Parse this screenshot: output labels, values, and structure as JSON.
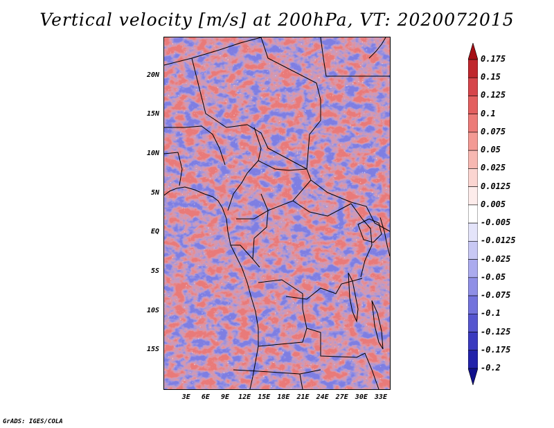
{
  "title": "Vertical velocity [m/s] at 200hPa, VT: 2020072015",
  "credit": "GrADS: IGES/COLA",
  "map": {
    "lon_range": [
      -0.5,
      34.5
    ],
    "lat_range": [
      -20,
      25
    ],
    "lat_ticks": [
      {
        "label": "20N",
        "lat": 20
      },
      {
        "label": "15N",
        "lat": 15
      },
      {
        "label": "10N",
        "lat": 10
      },
      {
        "label": "5N",
        "lat": 5
      },
      {
        "label": "EQ",
        "lat": 0
      },
      {
        "label": "5S",
        "lat": -5
      },
      {
        "label": "10S",
        "lat": -10
      },
      {
        "label": "15S",
        "lat": -15
      }
    ],
    "lon_ticks": [
      {
        "label": "3E",
        "lon": 3
      },
      {
        "label": "6E",
        "lon": 6
      },
      {
        "label": "9E",
        "lon": 9
      },
      {
        "label": "12E",
        "lon": 12
      },
      {
        "label": "15E",
        "lon": 15
      },
      {
        "label": "18E",
        "lon": 18
      },
      {
        "label": "21E",
        "lon": 21
      },
      {
        "label": "24E",
        "lon": 24
      },
      {
        "label": "27E",
        "lon": 27
      },
      {
        "label": "30E",
        "lon": 30
      },
      {
        "label": "33E",
        "lon": 33
      }
    ]
  },
  "colorbar": {
    "labels": [
      "0.175",
      "0.15",
      "0.125",
      "0.1",
      "0.075",
      "0.05",
      "0.025",
      "0.0125",
      "0.005",
      "-0.005",
      "-0.0125",
      "-0.025",
      "-0.05",
      "-0.075",
      "-0.1",
      "-0.125",
      "-0.175",
      "-0.2"
    ],
    "colors": [
      "#a50f15",
      "#c0272d",
      "#d6454a",
      "#e35f5f",
      "#ec7b78",
      "#f39a94",
      "#f7b8b2",
      "#fbd5d1",
      "#fdeceb",
      "#ffffff",
      "#e4e4fa",
      "#c8c8f4",
      "#ababee",
      "#8f8fe6",
      "#7373dc",
      "#5656cf",
      "#3a3abf",
      "#2222aa",
      "#10108c"
    ]
  }
}
